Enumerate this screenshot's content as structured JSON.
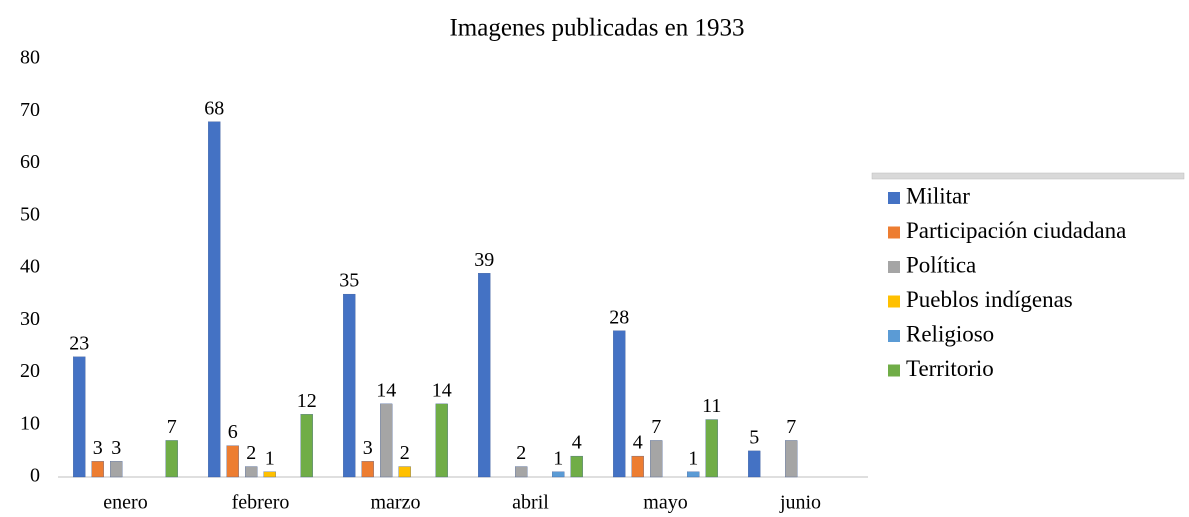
{
  "chart_data": {
    "type": "bar",
    "title": "Imagenes publicadas en  1933",
    "categories": [
      "enero",
      "febrero",
      "marzo",
      "abril",
      "mayo",
      "junio"
    ],
    "series": [
      {
        "name": "Militar",
        "color": "#4472c4",
        "values": [
          23,
          68,
          35,
          39,
          28,
          5
        ]
      },
      {
        "name": "Participación ciudadana",
        "color": "#ed7d31",
        "values": [
          3,
          6,
          3,
          null,
          4,
          null
        ]
      },
      {
        "name": "Política",
        "color": "#a5a5a5",
        "values": [
          3,
          2,
          14,
          2,
          7,
          7
        ]
      },
      {
        "name": "Pueblos indígenas",
        "color": "#ffc000",
        "values": [
          null,
          1,
          2,
          null,
          null,
          null
        ]
      },
      {
        "name": "Religioso",
        "color": "#5b9bd5",
        "values": [
          null,
          null,
          null,
          1,
          1,
          null
        ]
      },
      {
        "name": "Territorio",
        "color": "#70ad47",
        "values": [
          7,
          12,
          14,
          4,
          11,
          null
        ]
      }
    ],
    "ylim": [
      0,
      80
    ],
    "yticks": [
      0,
      10,
      20,
      30,
      40,
      50,
      60,
      70,
      80
    ],
    "grid": false,
    "legend": "right"
  }
}
